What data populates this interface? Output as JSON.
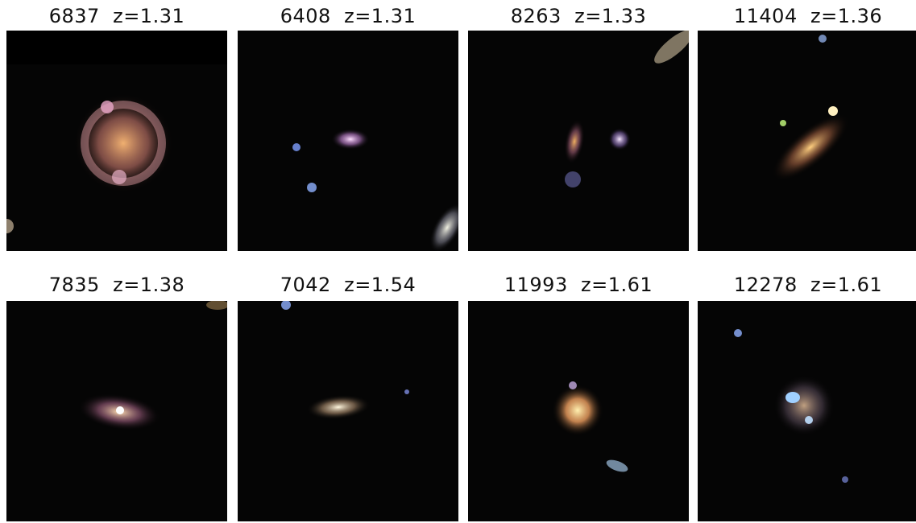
{
  "panels": [
    {
      "id": "6837",
      "z": "z=1.31"
    },
    {
      "id": "6408",
      "z": "z=1.31"
    },
    {
      "id": "8263",
      "z": "z=1.33"
    },
    {
      "id": "11404",
      "z": "z=1.36"
    },
    {
      "id": "7835",
      "z": "z=1.38"
    },
    {
      "id": "7042",
      "z": "z=1.54"
    },
    {
      "id": "11993",
      "z": "z=1.61"
    },
    {
      "id": "12278",
      "z": "z=1.61"
    }
  ],
  "background_color": "#050505"
}
